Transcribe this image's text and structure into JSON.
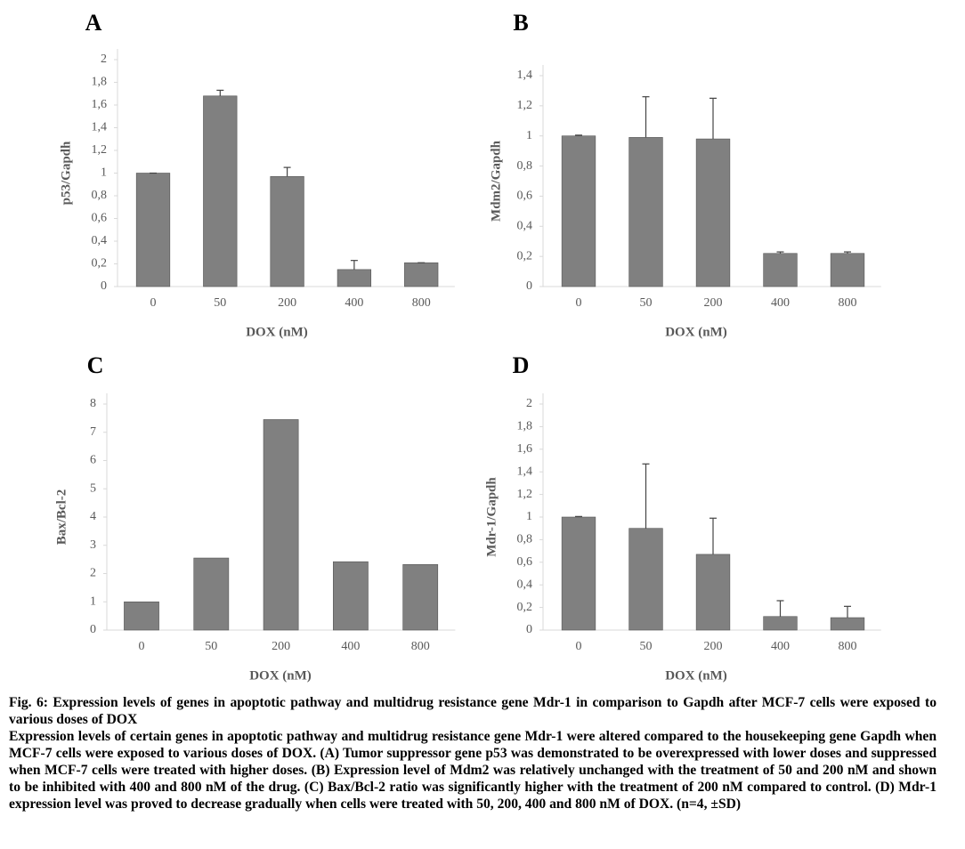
{
  "chart_data": [
    {
      "type": "bar",
      "label": "A",
      "ylabel": "p53/Gapdh",
      "xlabel": "DOX (nM)",
      "color": "#808080",
      "categories": [
        "0",
        "50",
        "200",
        "400",
        "800"
      ],
      "values": [
        1.0,
        1.68,
        0.97,
        0.15,
        0.21
      ],
      "errors": [
        0,
        0.05,
        0.08,
        0.08,
        0
      ],
      "ylim": [
        0,
        2
      ],
      "yticks": [
        0,
        {
          "value": 0.2,
          "label": "0,2"
        },
        {
          "value": 0.4,
          "label": "0,4"
        },
        {
          "value": 0.6,
          "label": "0,6"
        },
        {
          "value": 0.8,
          "label": "0,8"
        },
        1,
        {
          "value": 1.2,
          "label": "1,2"
        },
        {
          "value": 1.4,
          "label": "1,4"
        },
        {
          "value": 1.6,
          "label": "1,6"
        },
        {
          "value": 1.8,
          "label": "1,8"
        },
        2
      ]
    },
    {
      "type": "bar",
      "label": "B",
      "ylabel": "Mdm2/Gapdh",
      "xlabel": "DOX (nM)",
      "color": "#808080",
      "categories": [
        "0",
        "50",
        "200",
        "400",
        "800"
      ],
      "values": [
        1.0,
        0.99,
        0.98,
        0.22,
        0.22
      ],
      "errors": [
        0.005,
        0.27,
        0.27,
        0.01,
        0.01
      ],
      "ylim": [
        0,
        1.4
      ],
      "yticks": [
        0,
        {
          "value": 0.2,
          "label": "0,2"
        },
        {
          "value": 0.4,
          "label": "0,4"
        },
        {
          "value": 0.6,
          "label": "0,6"
        },
        {
          "value": 0.8,
          "label": "0,8"
        },
        1,
        {
          "value": 1.2,
          "label": "1,2"
        },
        {
          "value": 1.4,
          "label": "1,4"
        }
      ]
    },
    {
      "type": "bar",
      "label": "C",
      "ylabel": "Bax/Bcl-2",
      "xlabel": "DOX (nM)",
      "color": "#808080",
      "categories": [
        "0",
        "50",
        "200",
        "400",
        "800"
      ],
      "values": [
        1.0,
        2.55,
        7.45,
        2.42,
        2.32
      ],
      "ylim": [
        0,
        8
      ],
      "yticks": [
        0,
        1,
        2,
        3,
        4,
        5,
        6,
        7,
        8
      ]
    },
    {
      "type": "bar",
      "label": "D",
      "ylabel": "Mdr-1/Gapdh",
      "xlabel": "DOX (nM)",
      "color": "#808080",
      "categories": [
        "0",
        "50",
        "200",
        "400",
        "800"
      ],
      "values": [
        1.0,
        0.9,
        0.67,
        0.12,
        0.11
      ],
      "errors": [
        0.005,
        0.57,
        0.32,
        0.14,
        0.1
      ],
      "ylim": [
        0,
        2
      ],
      "yticks": [
        0,
        {
          "value": 0.2,
          "label": "0,2"
        },
        {
          "value": 0.4,
          "label": "0,4"
        },
        {
          "value": 0.6,
          "label": "0,6"
        },
        {
          "value": 0.8,
          "label": "0,8"
        },
        1,
        {
          "value": 1.2,
          "label": "1,2"
        },
        {
          "value": 1.4,
          "label": "1,4"
        },
        {
          "value": 1.6,
          "label": "1,6"
        },
        {
          "value": 1.8,
          "label": "1,8"
        },
        2
      ]
    }
  ],
  "caption": {
    "title": "Fig. 6: Expression levels of genes in apoptotic pathway and multidrug resistance gene Mdr-1 in comparison to Gapdh after MCF-7 cells were exposed to various doses of DOX",
    "text": "Expression levels of certain genes in apoptotic pathway and multidrug resistance gene Mdr-1 were altered compared to the housekeeping gene Gapdh when MCF-7 cells were exposed to various doses of DOX. (A) Tumor suppressor gene p53 was demonstrated to be overexpressed with lower doses and suppressed when MCF-7 cells were treated with higher doses. (B) Expression level of Mdm2 was relatively unchanged with the treatment of 50 and 200 nM and shown to be inhibited with 400 and 800 nM of the drug. (C) Bax/Bcl-2 ratio was significantly higher with the treatment of 200 nM compared to control. (D) Mdr-1 expression level was proved to decrease gradually when cells were treated with 50, 200, 400 and 800 nM of DOX. (n=4, ±SD)"
  }
}
